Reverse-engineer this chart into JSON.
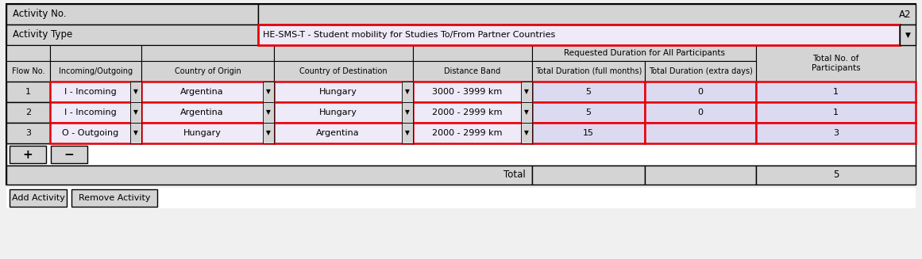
{
  "activity_no": "A2",
  "activity_type_label": "Activity Type",
  "activity_type_value": "HE-SMS-T - Student mobility for Studies To/From Partner Countries",
  "subheader": "Requested Duration for All Participants",
  "rows": [
    {
      "flow": "1",
      "io": "I - Incoming",
      "origin": "Argentina",
      "dest": "Hungary",
      "dist": "3000 - 3999 km",
      "dur_full": "5",
      "dur_extra": "0",
      "total": "1"
    },
    {
      "flow": "2",
      "io": "I - Incoming",
      "origin": "Argentina",
      "dest": "Hungary",
      "dist": "2000 - 2999 km",
      "dur_full": "5",
      "dur_extra": "0",
      "total": "1"
    },
    {
      "flow": "3",
      "io": "O - Outgoing",
      "origin": "Hungary",
      "dest": "Argentina",
      "dist": "2000 - 2999 km",
      "dur_full": "15",
      "dur_extra": "",
      "total": "3"
    }
  ],
  "total_participants": "5",
  "bg_gray": "#d4d4d4",
  "bg_white": "#ffffff",
  "bg_lavender": "#dcdaf0",
  "bg_lavender_light": "#eeeaf8",
  "red_border": "#e8000a",
  "dark_border": "#000000",
  "fig_bg": "#f0f0f0"
}
